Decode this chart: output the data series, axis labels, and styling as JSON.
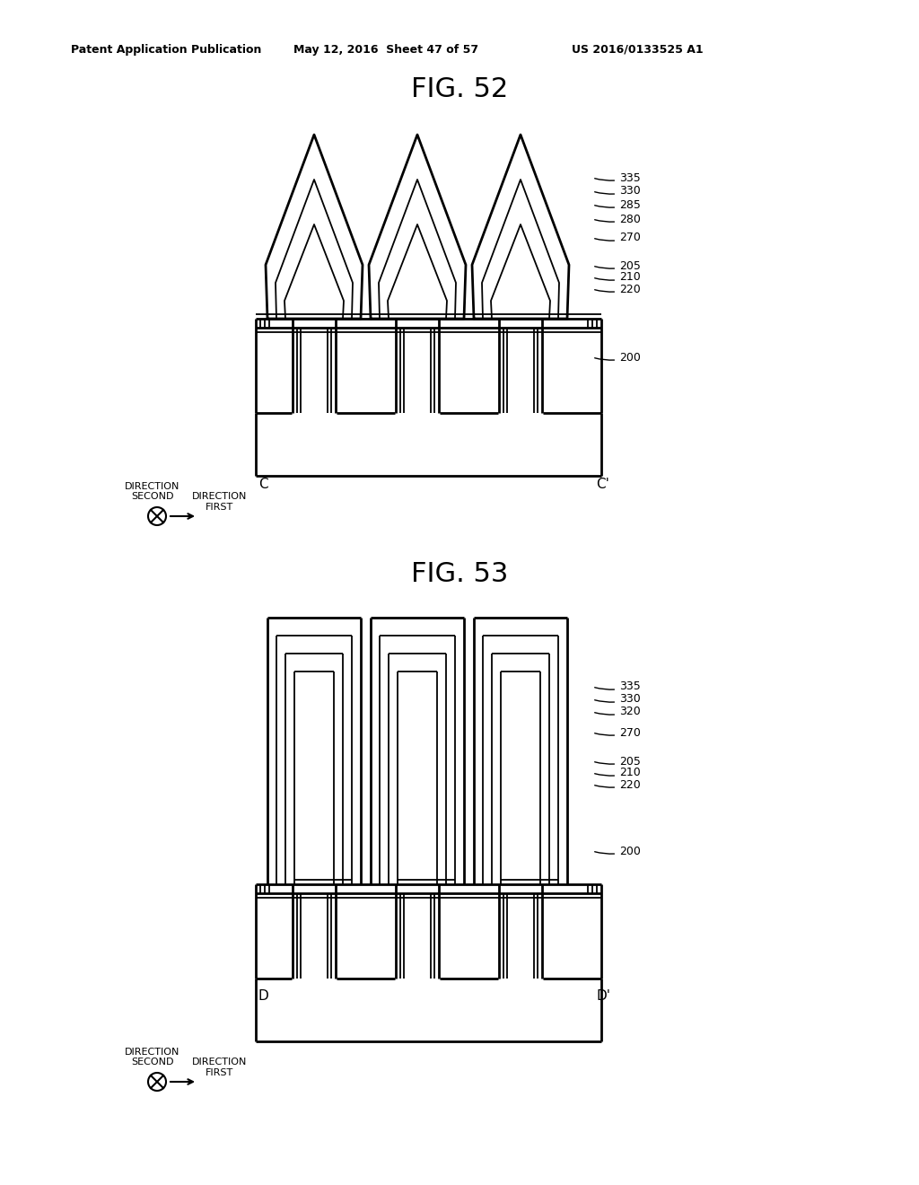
{
  "header_left": "Patent Application Publication",
  "header_center": "May 12, 2016  Sheet 47 of 57",
  "header_right": "US 2016/0133525 A1",
  "fig52_title": "FIG. 52",
  "fig53_title": "FIG. 53",
  "background_color": "#ffffff",
  "line_color": "#000000",
  "fig52_labels": [
    [
      670,
      320,
      "335"
    ],
    [
      670,
      305,
      "330"
    ],
    [
      670,
      288,
      "285"
    ],
    [
      670,
      272,
      "280"
    ],
    [
      670,
      253,
      "270"
    ],
    [
      670,
      226,
      "205"
    ],
    [
      670,
      215,
      "210"
    ],
    [
      670,
      204,
      "220"
    ],
    [
      670,
      152,
      "200"
    ]
  ],
  "fig53_labels": [
    [
      670,
      870,
      "335"
    ],
    [
      670,
      855,
      "330"
    ],
    [
      670,
      840,
      "320"
    ],
    [
      670,
      814,
      "270"
    ],
    [
      670,
      782,
      "205"
    ],
    [
      670,
      770,
      "210"
    ],
    [
      670,
      758,
      "220"
    ],
    [
      670,
      700,
      "200"
    ]
  ],
  "label_C": "C",
  "label_Cp": "C'",
  "label_D": "D",
  "label_Dp": "D'"
}
